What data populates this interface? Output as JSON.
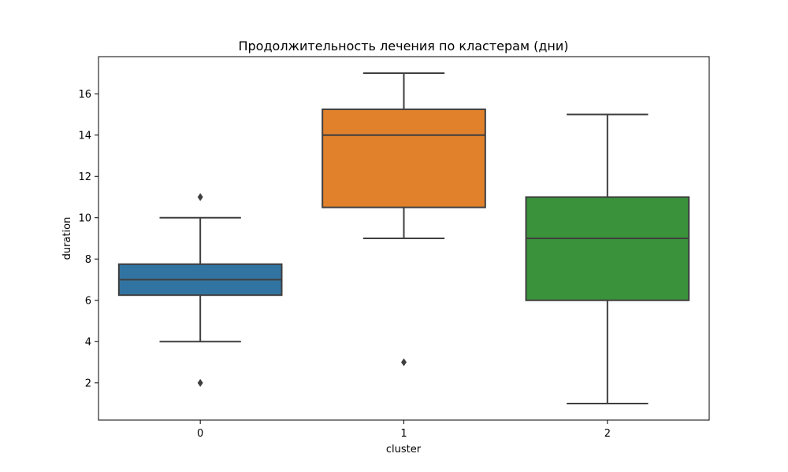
{
  "chart_data": {
    "type": "box",
    "title": "Продолжительность лечения по кластерам (дни)",
    "xlabel": "cluster",
    "ylabel": "duration",
    "ylim": [
      0.2,
      17.8
    ],
    "yticks": [
      2,
      4,
      6,
      8,
      10,
      12,
      14,
      16
    ],
    "categories": [
      "0",
      "1",
      "2"
    ],
    "grid": false,
    "boxes": [
      {
        "category": "0",
        "color": "#3274a1",
        "whisker_low": 4,
        "q1": 6.25,
        "median": 7,
        "q3": 7.75,
        "whisker_high": 10,
        "outliers": [
          11,
          2
        ]
      },
      {
        "category": "1",
        "color": "#e1812c",
        "whisker_low": 9,
        "q1": 10.5,
        "median": 14,
        "q3": 15.25,
        "whisker_high": 17,
        "outliers": [
          3
        ]
      },
      {
        "category": "2",
        "color": "#3a923a",
        "whisker_low": 1,
        "q1": 6,
        "median": 9,
        "q3": 11,
        "whisker_high": 15,
        "outliers": []
      }
    ]
  }
}
